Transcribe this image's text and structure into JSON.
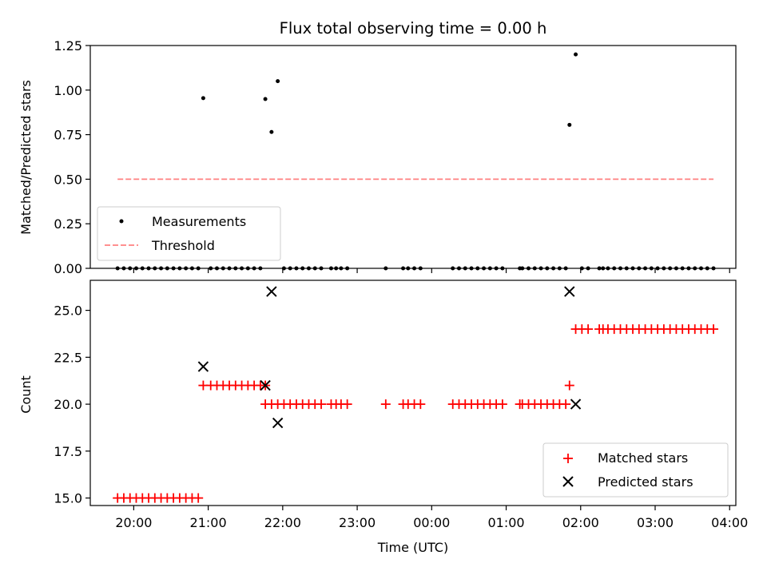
{
  "chart_data": [
    {
      "type": "scatter",
      "title": "Flux total observing time = 0.00 h",
      "xlabel": "",
      "ylabel": "Matched/Predicted stars",
      "xlim": [
        "19:25",
        "04:05"
      ],
      "ylim": [
        0,
        1.25
      ],
      "yticks": [
        "0.00",
        "0.25",
        "0.50",
        "0.75",
        "1.00",
        "1.25"
      ],
      "grid": false,
      "legend_position": "lower-left",
      "series": [
        {
          "name": "Measurements",
          "color": "#000000",
          "marker": "dot",
          "points": [
            [
              "19:47",
              0
            ],
            [
              "19:52",
              0
            ],
            [
              "19:57",
              0
            ],
            [
              "20:02",
              0
            ],
            [
              "20:07",
              0
            ],
            [
              "20:12",
              0
            ],
            [
              "20:17",
              0
            ],
            [
              "20:22",
              0
            ],
            [
              "20:27",
              0
            ],
            [
              "20:32",
              0
            ],
            [
              "20:37",
              0
            ],
            [
              "20:42",
              0
            ],
            [
              "20:47",
              0
            ],
            [
              "20:52",
              0
            ],
            [
              "20:56",
              0.955
            ],
            [
              "21:02",
              0
            ],
            [
              "21:07",
              0
            ],
            [
              "21:12",
              0
            ],
            [
              "21:17",
              0
            ],
            [
              "21:22",
              0
            ],
            [
              "21:27",
              0
            ],
            [
              "21:32",
              0
            ],
            [
              "21:37",
              0
            ],
            [
              "21:42",
              0
            ],
            [
              "21:46",
              0.95
            ],
            [
              "21:51",
              0.765
            ],
            [
              "21:56",
              1.05
            ],
            [
              "22:01",
              0
            ],
            [
              "22:06",
              0
            ],
            [
              "22:11",
              0
            ],
            [
              "22:16",
              0
            ],
            [
              "22:21",
              0
            ],
            [
              "22:26",
              0
            ],
            [
              "22:31",
              0
            ],
            [
              "22:39",
              0
            ],
            [
              "22:43",
              0
            ],
            [
              "22:47",
              0
            ],
            [
              "22:52",
              0
            ],
            [
              "23:23",
              0
            ],
            [
              "23:37",
              0
            ],
            [
              "23:41",
              0
            ],
            [
              "23:46",
              0
            ],
            [
              "23:51",
              0
            ],
            [
              "00:17",
              0
            ],
            [
              "00:22",
              0
            ],
            [
              "00:27",
              0
            ],
            [
              "00:32",
              0
            ],
            [
              "00:37",
              0
            ],
            [
              "00:42",
              0
            ],
            [
              "00:47",
              0
            ],
            [
              "00:52",
              0
            ],
            [
              "00:57",
              0
            ],
            [
              "01:11",
              0
            ],
            [
              "01:13",
              0
            ],
            [
              "01:18",
              0
            ],
            [
              "01:23",
              0
            ],
            [
              "01:28",
              0
            ],
            [
              "01:33",
              0
            ],
            [
              "01:38",
              0
            ],
            [
              "01:43",
              0
            ],
            [
              "01:48",
              0
            ],
            [
              "01:51",
              0.805
            ],
            [
              "01:56",
              1.2
            ],
            [
              "02:01",
              0
            ],
            [
              "02:06",
              0
            ],
            [
              "02:15",
              0
            ],
            [
              "02:18",
              0
            ],
            [
              "02:22",
              0
            ],
            [
              "02:27",
              0
            ],
            [
              "02:32",
              0
            ],
            [
              "02:37",
              0
            ],
            [
              "02:42",
              0
            ],
            [
              "02:47",
              0
            ],
            [
              "02:52",
              0
            ],
            [
              "02:57",
              0
            ],
            [
              "03:02",
              0
            ],
            [
              "03:07",
              0
            ],
            [
              "03:12",
              0
            ],
            [
              "03:17",
              0
            ],
            [
              "03:22",
              0
            ],
            [
              "03:27",
              0
            ],
            [
              "03:32",
              0
            ],
            [
              "03:37",
              0
            ],
            [
              "03:42",
              0
            ],
            [
              "03:47",
              0
            ]
          ]
        },
        {
          "name": "Threshold",
          "color": "#ff8080",
          "style": "dashed",
          "points": [
            [
              "19:47",
              0.5
            ],
            [
              "03:47",
              0.5
            ]
          ]
        }
      ]
    },
    {
      "type": "scatter",
      "title": "",
      "xlabel": "Time (UTC)",
      "ylabel": "Count",
      "xlim": [
        "19:25",
        "04:05"
      ],
      "ylim": [
        14.6,
        26.6
      ],
      "yticks": [
        "15.0",
        "17.5",
        "20.0",
        "22.5",
        "25.0"
      ],
      "xticks": [
        "20:00",
        "21:00",
        "22:00",
        "23:00",
        "00:00",
        "01:00",
        "02:00",
        "03:00",
        "04:00"
      ],
      "grid": false,
      "legend_position": "lower-right",
      "series": [
        {
          "name": "Matched stars",
          "color": "#ff0000",
          "marker": "plus",
          "points": [
            [
              "19:47",
              15
            ],
            [
              "19:52",
              15
            ],
            [
              "19:57",
              15
            ],
            [
              "20:02",
              15
            ],
            [
              "20:07",
              15
            ],
            [
              "20:12",
              15
            ],
            [
              "20:17",
              15
            ],
            [
              "20:22",
              15
            ],
            [
              "20:27",
              15
            ],
            [
              "20:32",
              15
            ],
            [
              "20:37",
              15
            ],
            [
              "20:42",
              15
            ],
            [
              "20:47",
              15
            ],
            [
              "20:52",
              15
            ],
            [
              "20:56",
              21
            ],
            [
              "21:02",
              21
            ],
            [
              "21:07",
              21
            ],
            [
              "21:12",
              21
            ],
            [
              "21:17",
              21
            ],
            [
              "21:22",
              21
            ],
            [
              "21:27",
              21
            ],
            [
              "21:32",
              21
            ],
            [
              "21:37",
              21
            ],
            [
              "21:42",
              21
            ],
            [
              "21:46",
              21
            ],
            [
              "21:46",
              20
            ],
            [
              "21:51",
              20
            ],
            [
              "21:56",
              20
            ],
            [
              "22:01",
              20
            ],
            [
              "22:06",
              20
            ],
            [
              "22:11",
              20
            ],
            [
              "22:16",
              20
            ],
            [
              "22:21",
              20
            ],
            [
              "22:26",
              20
            ],
            [
              "22:31",
              20
            ],
            [
              "22:39",
              20
            ],
            [
              "22:43",
              20
            ],
            [
              "22:47",
              20
            ],
            [
              "22:52",
              20
            ],
            [
              "23:23",
              20
            ],
            [
              "23:37",
              20
            ],
            [
              "23:41",
              20
            ],
            [
              "23:46",
              20
            ],
            [
              "23:51",
              20
            ],
            [
              "00:17",
              20
            ],
            [
              "00:22",
              20
            ],
            [
              "00:27",
              20
            ],
            [
              "00:32",
              20
            ],
            [
              "00:37",
              20
            ],
            [
              "00:42",
              20
            ],
            [
              "00:47",
              20
            ],
            [
              "00:52",
              20
            ],
            [
              "00:57",
              20
            ],
            [
              "01:11",
              20
            ],
            [
              "01:13",
              20
            ],
            [
              "01:18",
              20
            ],
            [
              "01:23",
              20
            ],
            [
              "01:28",
              20
            ],
            [
              "01:33",
              20
            ],
            [
              "01:38",
              20
            ],
            [
              "01:43",
              20
            ],
            [
              "01:48",
              20
            ],
            [
              "01:51",
              21
            ],
            [
              "01:56",
              24
            ],
            [
              "02:01",
              24
            ],
            [
              "02:06",
              24
            ],
            [
              "02:15",
              24
            ],
            [
              "02:18",
              24
            ],
            [
              "02:22",
              24
            ],
            [
              "02:27",
              24
            ],
            [
              "02:32",
              24
            ],
            [
              "02:37",
              24
            ],
            [
              "02:42",
              24
            ],
            [
              "02:47",
              24
            ],
            [
              "02:52",
              24
            ],
            [
              "02:57",
              24
            ],
            [
              "03:02",
              24
            ],
            [
              "03:07",
              24
            ],
            [
              "03:12",
              24
            ],
            [
              "03:17",
              24
            ],
            [
              "03:22",
              24
            ],
            [
              "03:27",
              24
            ],
            [
              "03:32",
              24
            ],
            [
              "03:37",
              24
            ],
            [
              "03:42",
              24
            ],
            [
              "03:47",
              24
            ]
          ]
        },
        {
          "name": "Predicted stars",
          "color": "#000000",
          "marker": "x",
          "points": [
            [
              "20:56",
              22
            ],
            [
              "21:46",
              21
            ],
            [
              "21:51",
              26
            ],
            [
              "21:56",
              19
            ],
            [
              "01:51",
              26
            ],
            [
              "01:56",
              20
            ]
          ]
        }
      ]
    }
  ]
}
